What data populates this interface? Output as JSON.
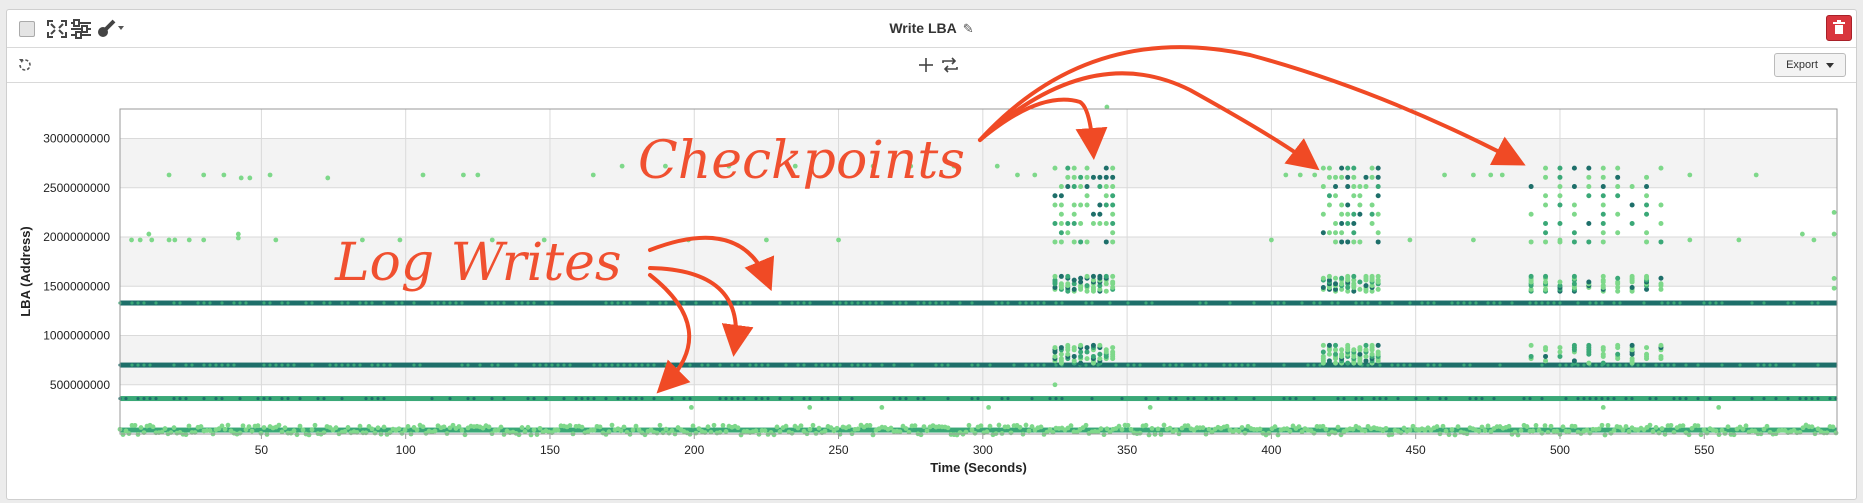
{
  "window": {
    "title": "Write LBA",
    "export_label": "Export"
  },
  "icons": {
    "select": "checkbox-icon",
    "expand": "expand-icon",
    "settings": "sliders-icon",
    "tool": "wrench-icon",
    "refresh": "refresh-icon",
    "add": "plus-icon",
    "swap": "swap-icon",
    "edit": "pencil-icon",
    "delete": "trash-icon"
  },
  "colors": {
    "light_point": "#7ed88a",
    "mid_point": "#3aa877",
    "dark_point": "#1e6f6a",
    "annotation": "#f04a25",
    "delete_button": "#d9363e"
  },
  "annotations": {
    "checkpoints": "Checkpoints",
    "log_writes": "Log Writes"
  },
  "chart_data": {
    "type": "scatter",
    "title": "",
    "xlabel": "Time (Seconds)",
    "ylabel": "LBA (Address)",
    "xlim": [
      1,
      596
    ],
    "ylim": [
      0,
      3300000000
    ],
    "x_ticks": [
      50,
      100,
      150,
      200,
      250,
      300,
      350,
      400,
      450,
      500,
      550
    ],
    "y_ticks": [
      500000000,
      1000000000,
      1500000000,
      2000000000,
      2500000000,
      3000000000
    ],
    "y_tick_labels": [
      "500000000",
      "1000000000",
      "1500000000",
      "2000000000",
      "2500000000",
      "3000000000"
    ],
    "grid": true,
    "legend": "none",
    "log_write_bands": [
      {
        "lba": 1330000000,
        "x_range": [
          1,
          596
        ]
      },
      {
        "lba": 700000000,
        "x_range": [
          1,
          596
        ]
      },
      {
        "lba": 360000000,
        "x_range": [
          1,
          596
        ]
      },
      {
        "lba": 40000000,
        "x_range": [
          1,
          596
        ]
      }
    ],
    "checkpoint_bursts": [
      {
        "x_range": [
          325,
          345
        ],
        "lba_ranges": [
          [
            1450000000,
            1600000000
          ],
          [
            720000000,
            900000000
          ],
          [
            1950000000,
            2700000000
          ]
        ]
      },
      {
        "x_range": [
          418,
          437
        ],
        "lba_ranges": [
          [
            1450000000,
            1600000000
          ],
          [
            720000000,
            900000000
          ],
          [
            1950000000,
            2700000000
          ]
        ]
      },
      {
        "x_range": [
          490,
          535
        ],
        "lba_ranges": [
          [
            1450000000,
            1600000000
          ],
          [
            720000000,
            900000000
          ],
          [
            1950000000,
            2700000000
          ]
        ]
      }
    ],
    "scattered_points": [
      {
        "x": 5,
        "y": 1970000000
      },
      {
        "x": 8,
        "y": 1970000000
      },
      {
        "x": 12,
        "y": 1970000000
      },
      {
        "x": 11,
        "y": 2030000000
      },
      {
        "x": 18,
        "y": 2630000000
      },
      {
        "x": 18,
        "y": 1970000000
      },
      {
        "x": 20,
        "y": 1970000000
      },
      {
        "x": 25,
        "y": 1970000000
      },
      {
        "x": 30,
        "y": 1970000000
      },
      {
        "x": 30,
        "y": 2630000000
      },
      {
        "x": 37,
        "y": 2630000000
      },
      {
        "x": 43,
        "y": 2600000000
      },
      {
        "x": 42,
        "y": 1990000000
      },
      {
        "x": 42,
        "y": 2030000000
      },
      {
        "x": 46,
        "y": 2600000000
      },
      {
        "x": 53,
        "y": 2630000000
      },
      {
        "x": 55,
        "y": 1970000000
      },
      {
        "x": 73,
        "y": 2600000000
      },
      {
        "x": 85,
        "y": 1970000000
      },
      {
        "x": 98,
        "y": 1970000000
      },
      {
        "x": 106,
        "y": 2630000000
      },
      {
        "x": 120,
        "y": 2630000000
      },
      {
        "x": 125,
        "y": 2630000000
      },
      {
        "x": 130,
        "y": 1970000000
      },
      {
        "x": 148,
        "y": 1970000000
      },
      {
        "x": 165,
        "y": 2630000000
      },
      {
        "x": 175,
        "y": 2720000000
      },
      {
        "x": 190,
        "y": 2720000000
      },
      {
        "x": 198,
        "y": 1970000000
      },
      {
        "x": 212,
        "y": 2720000000
      },
      {
        "x": 225,
        "y": 1970000000
      },
      {
        "x": 235,
        "y": 2720000000
      },
      {
        "x": 250,
        "y": 1970000000
      },
      {
        "x": 262,
        "y": 2720000000
      },
      {
        "x": 275,
        "y": 2720000000
      },
      {
        "x": 290,
        "y": 2720000000
      },
      {
        "x": 305,
        "y": 2720000000
      },
      {
        "x": 312,
        "y": 2630000000
      },
      {
        "x": 318,
        "y": 2630000000
      },
      {
        "x": 343,
        "y": 3320000000
      },
      {
        "x": 325,
        "y": 500000000
      },
      {
        "x": 199,
        "y": 270000000
      },
      {
        "x": 240,
        "y": 270000000
      },
      {
        "x": 265,
        "y": 270000000
      },
      {
        "x": 302,
        "y": 270000000
      },
      {
        "x": 358,
        "y": 270000000
      },
      {
        "x": 400,
        "y": 1970000000
      },
      {
        "x": 405,
        "y": 2630000000
      },
      {
        "x": 410,
        "y": 2630000000
      },
      {
        "x": 415,
        "y": 2630000000
      },
      {
        "x": 448,
        "y": 1970000000
      },
      {
        "x": 460,
        "y": 2630000000
      },
      {
        "x": 470,
        "y": 1970000000
      },
      {
        "x": 470,
        "y": 2630000000
      },
      {
        "x": 476,
        "y": 2630000000
      },
      {
        "x": 480,
        "y": 2630000000
      },
      {
        "x": 500,
        "y": 1970000000
      },
      {
        "x": 515,
        "y": 270000000
      },
      {
        "x": 545,
        "y": 2630000000
      },
      {
        "x": 545,
        "y": 1970000000
      },
      {
        "x": 555,
        "y": 270000000
      },
      {
        "x": 562,
        "y": 1970000000
      },
      {
        "x": 568,
        "y": 2630000000
      },
      {
        "x": 584,
        "y": 2030000000
      },
      {
        "x": 588,
        "y": 1970000000
      },
      {
        "x": 595,
        "y": 2250000000
      },
      {
        "x": 595,
        "y": 2030000000
      },
      {
        "x": 595,
        "y": 1480000000
      },
      {
        "x": 595,
        "y": 1580000000
      }
    ]
  }
}
